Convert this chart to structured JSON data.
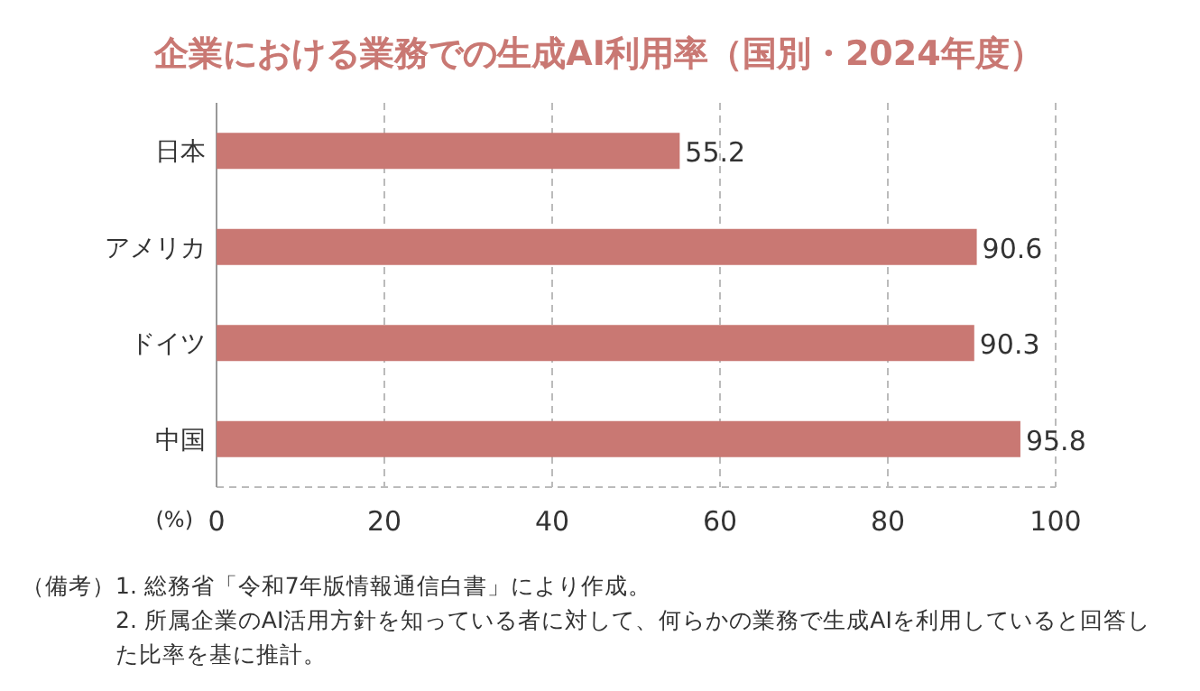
{
  "chart_data": {
    "type": "bar",
    "orientation": "horizontal",
    "title": "企業における業務での生成AI利用率（国別・2024年度）",
    "categories": [
      "日本",
      "アメリカ",
      "ドイツ",
      "中国"
    ],
    "values": [
      55.2,
      90.6,
      90.3,
      95.8
    ],
    "color": "#c97873",
    "xlim": [
      0,
      100
    ],
    "xticks": [
      0,
      20,
      40,
      60,
      80,
      100
    ],
    "xlabel": "(%)",
    "grid": "x",
    "data_labels": true,
    "annotations": [
      "（備考）",
      "1. 総務省「令和7年版情報通信白書」により作成。",
      "2. 所属企業のAI活用方針を知っている者に対して、何らかの業務で生成AIを利用していると回答した比率を基に推計。"
    ]
  }
}
